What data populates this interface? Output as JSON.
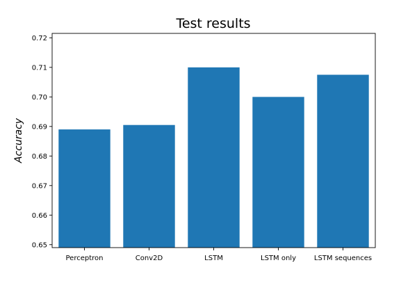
{
  "chart_data": {
    "type": "bar",
    "title": "Test results",
    "xlabel": "",
    "ylabel": "Accuracy",
    "categories": [
      "Perceptron",
      "Conv2D",
      "LSTM",
      "LSTM only",
      "LSTM sequences"
    ],
    "values": [
      0.689,
      0.6905,
      0.71,
      0.7,
      0.7075
    ],
    "ylim": [
      0.649,
      0.7215
    ],
    "yticks": [
      "0.65",
      "0.66",
      "0.67",
      "0.68",
      "0.69",
      "0.70",
      "0.71",
      "0.72"
    ],
    "grid": false,
    "colors": {
      "bar": "#1f77b4",
      "axis": "#000000",
      "background": "#ffffff"
    }
  }
}
